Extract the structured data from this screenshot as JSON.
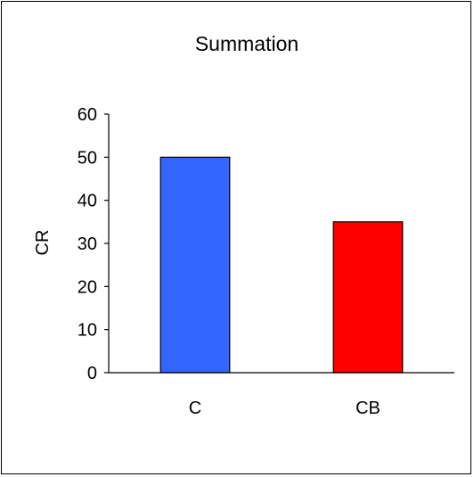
{
  "chart_data": {
    "type": "bar",
    "title": "Summation",
    "xlabel": "",
    "ylabel": "CR",
    "categories": [
      "C",
      "CB"
    ],
    "values": [
      50,
      35
    ],
    "colors": [
      "#3366ff",
      "#ff0000"
    ],
    "ylim": [
      0,
      60
    ],
    "yticks": [
      0,
      10,
      20,
      30,
      40,
      50,
      60
    ],
    "grid": false,
    "legend": "none"
  }
}
